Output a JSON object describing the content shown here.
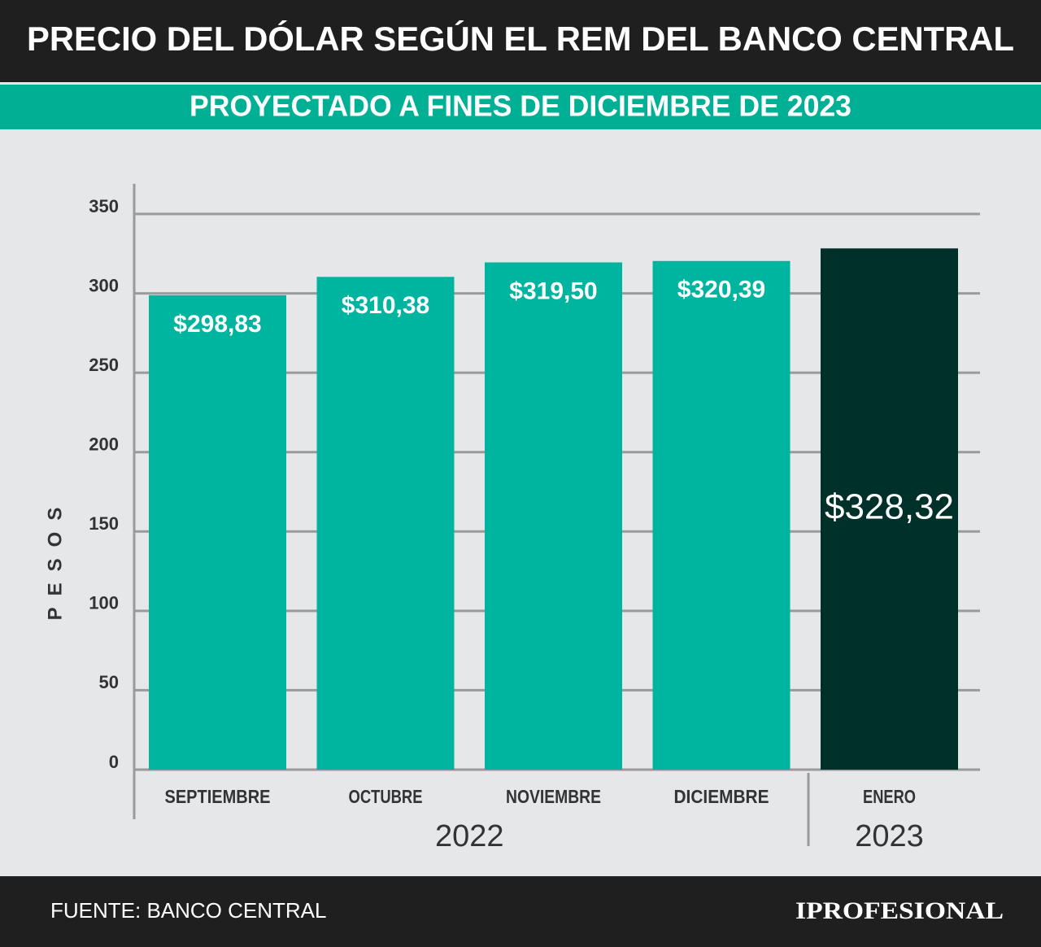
{
  "chart_data": {
    "type": "bar",
    "title": "PRECIO DEL DÓLAR SEGÚN EL REM DEL BANCO CENTRAL",
    "subtitle": "PROYECTADO A FINES DE DICIEMBRE DE 2023",
    "y_label": "PESOS",
    "categories": [
      "SEPTIEMBRE",
      "OCTUBRE",
      "NOVIEMBRE",
      "DICIEMBRE",
      "ENERO"
    ],
    "values": [
      298.83,
      310.38,
      319.5,
      320.39,
      328.32
    ],
    "value_labels": [
      "$298,83",
      "$310,38",
      "$319,50",
      "$320,39",
      "$328,32"
    ],
    "color": "#00b5a0",
    "highlight": {
      "category": "ENERO",
      "color": "#00302a"
    },
    "x_groups": [
      {
        "label": "2022",
        "count": 4
      },
      {
        "label": "2023",
        "count": 1
      }
    ],
    "ylim": [
      0,
      350
    ],
    "yticks": [
      0,
      50,
      100,
      150,
      200,
      250,
      300,
      350
    ],
    "grid": true,
    "source": "FUENTE: BANCO CENTRAL",
    "brand": "IPROFESIONAL"
  }
}
